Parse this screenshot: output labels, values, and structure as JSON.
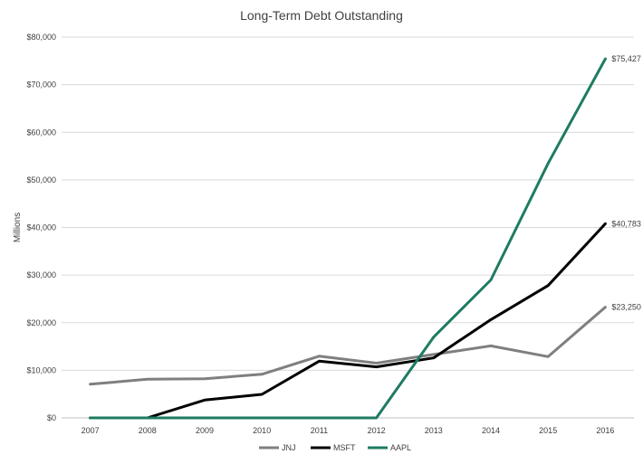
{
  "chart_data": {
    "type": "line",
    "title": "Long-Term Debt Outstanding",
    "xlabel": "",
    "ylabel": "Millions",
    "categories": [
      "2007",
      "2008",
      "2009",
      "2010",
      "2011",
      "2012",
      "2013",
      "2014",
      "2015",
      "2016"
    ],
    "ylim": [
      0,
      80000
    ],
    "yticks": [
      0,
      10000,
      20000,
      30000,
      40000,
      50000,
      60000,
      70000,
      80000
    ],
    "ytick_labels": [
      "$0",
      "$10,000",
      "$20,000",
      "$30,000",
      "$40,000",
      "$50,000",
      "$60,000",
      "$70,000",
      "$80,000"
    ],
    "grid": true,
    "legend_position": "bottom",
    "series": [
      {
        "name": "JNJ",
        "color": "#7f7f7f",
        "values": [
          7074,
          8120,
          8223,
          9156,
          12969,
          11489,
          13328,
          15122,
          12857,
          23250
        ],
        "end_label": ""
      },
      {
        "name": "MSFT",
        "color": "#000000",
        "values": [
          0,
          0,
          3746,
          4939,
          11921,
          10713,
          12601,
          20645,
          27808,
          40783
        ],
        "end_label": ""
      },
      {
        "name": "AAPL",
        "color": "#1e7b62",
        "values": [
          0,
          0,
          0,
          0,
          0,
          0,
          16960,
          28987,
          53463,
          75427
        ],
        "end_label": ""
      }
    ],
    "end_labels": [
      "$75,427",
      "$40,783",
      "$23,250"
    ]
  }
}
